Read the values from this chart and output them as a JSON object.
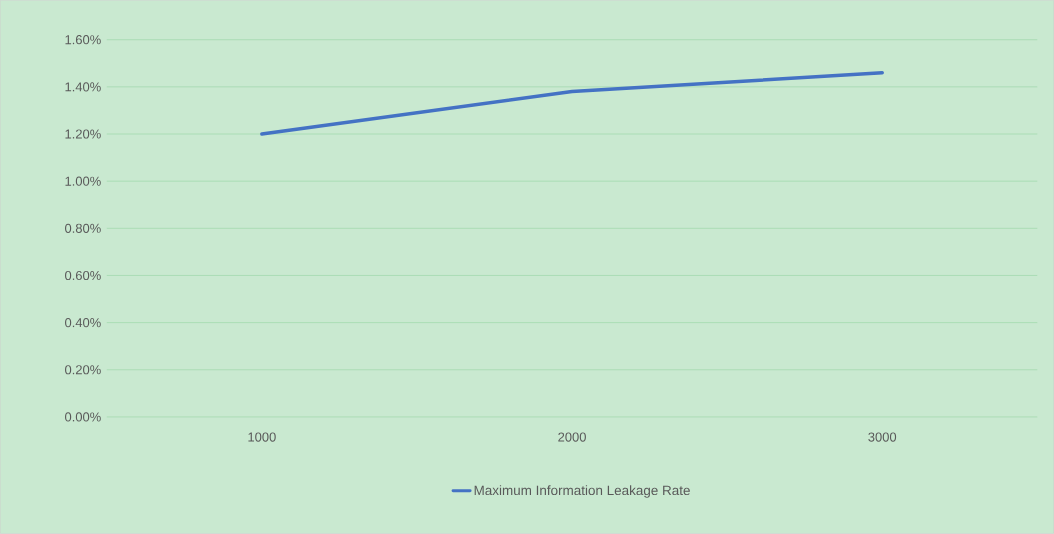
{
  "chart_data": {
    "type": "line",
    "categories": [
      "1000",
      "2000",
      "3000"
    ],
    "series": [
      {
        "name": "Maximum Information Leakage Rate",
        "color": "#4472c4",
        "values": [
          1.2,
          1.38,
          1.46
        ]
      }
    ],
    "ylim": [
      0,
      1.6
    ],
    "yticks": [
      {
        "value": 0,
        "label": "0.00%"
      },
      {
        "value": 0.2,
        "label": "0.20%"
      },
      {
        "value": 0.4,
        "label": "0.40%"
      },
      {
        "value": 0.6,
        "label": "0.60%"
      },
      {
        "value": 0.8,
        "label": "0.80%"
      },
      {
        "value": 1.0,
        "label": "1.00%"
      },
      {
        "value": 1.2,
        "label": "1.20%"
      },
      {
        "value": 1.4,
        "label": "1.40%"
      },
      {
        "value": 1.6,
        "label": "1.60%"
      }
    ],
    "grid": "y",
    "legend": "bottom",
    "marker": "none",
    "line_style": "solid"
  }
}
